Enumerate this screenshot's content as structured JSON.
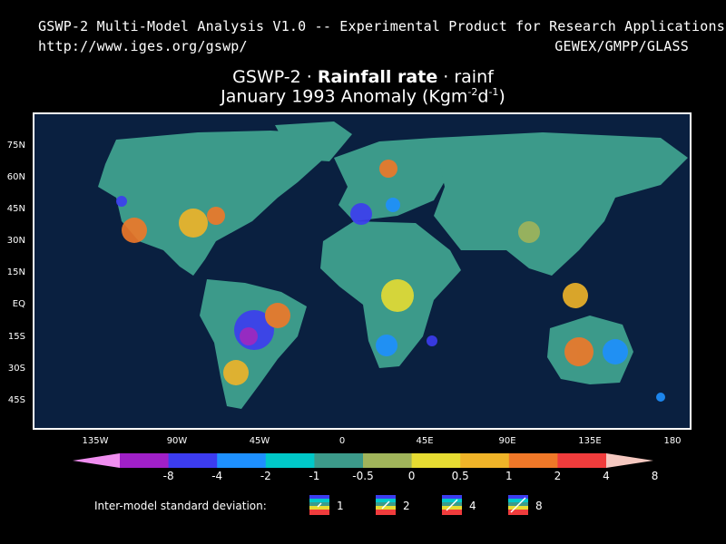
{
  "header": {
    "line1": "GSWP-2 Multi-Model Analysis V1.0 -- Experimental Product for Research Applications",
    "url": "http://www.iges.org/gswp/",
    "right": "GEWEX/GMPP/GLASS"
  },
  "title": {
    "prefix": "GSWP-2 · ",
    "variable": "Rainfall rate",
    "suffix": " · rainf",
    "line2_pre": "January 1993 Anomaly (Kgm",
    "exp1": "-2",
    "mid": "d",
    "exp2": "-1",
    "line2_post": ")"
  },
  "axes": {
    "lat_labels": [
      "75N",
      "60N",
      "45N",
      "30N",
      "15N",
      "EQ",
      "15S",
      "30S",
      "45S"
    ],
    "lon_labels": [
      "135W",
      "90W",
      "45W",
      "0",
      "45E",
      "90E",
      "135E",
      "180"
    ]
  },
  "colorbar": {
    "labels": [
      "-8",
      "-4",
      "-2",
      "-1",
      "-0.5",
      "0",
      "0.5",
      "1",
      "2",
      "4",
      "8"
    ],
    "colors": [
      "#f08ef0",
      "#a020c8",
      "#3c3cf0",
      "#1e90ff",
      "#00c8c8",
      "#3c9a8a",
      "#a0b45a",
      "#e6dc32",
      "#f0b428",
      "#f07828",
      "#f03c3c",
      "#f5c8c0"
    ]
  },
  "std_dev_legend": {
    "title": "Inter-model standard deviation:",
    "values": [
      "1",
      "2",
      "4",
      "8"
    ]
  },
  "map_colors": {
    "ocean": "#0a2040",
    "land": "#3c9a8a"
  }
}
